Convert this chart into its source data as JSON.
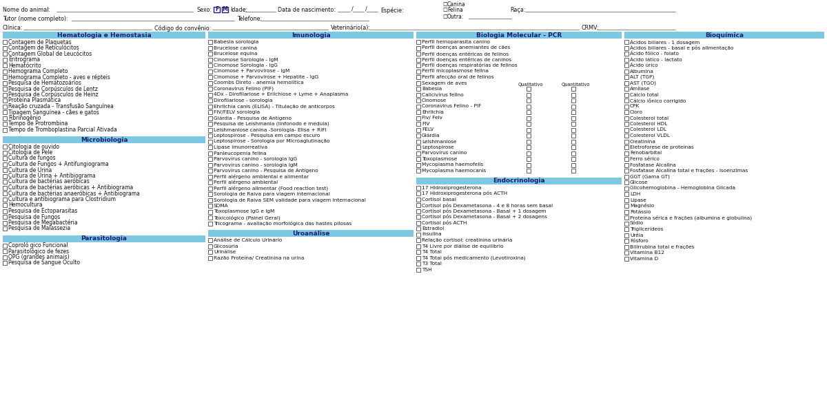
{
  "section_bg": "#7ec8e3",
  "header_text_color": "#1a1a6e",
  "body_text_color": "#111111",
  "checkbox_color": "#444444",
  "bg_color": "#ffffff",
  "col1_sections": [
    {
      "title": "Hematologia e Hemostasia",
      "items": [
        "Contagem de Plaquetas",
        "Contagem de Reticulócitos",
        "Contagem Global de Leucócitos",
        "Eritrograma",
        "Hematócrito",
        "Hemograma Completo",
        "Hemograma Completo - aves e répteis",
        "Pesquisa de Hematozoários",
        "Pesquisa de Corpúsculos de Lentz",
        "Pesquisa de Corpúsculos de Heinz",
        "Proteína Plasmática",
        "Reação cruzada - Transfusão Sanguínea",
        "Tipagem Sanguínea - cães e gatos",
        "Fibrinogênio",
        "Tempo de Protrombina",
        "Tempo de Tromboplastina Parcial Ativada"
      ]
    },
    {
      "title": "Microbiologia",
      "items": [
        "Citologia de ouvido",
        "Citologia de Pele",
        "Cultura de fungos",
        "Cultura de Fungos + Antifungiograma",
        "Cultura de Urina",
        "Cultura de Urina + Antibiograma",
        "Cultura de bactérias aeróbicas",
        "Cultura de bactérias aeróbicas + Antibiograma",
        "Cultura de bactérias anaeróbicas + Antibiograma",
        "Cultura e antibiograma para Clostridium",
        "Hemocultura",
        "Pesquisa de Ectoparasitas",
        "Pesquisa de Fungos",
        "Pesquisa de Megabactéria",
        "Pesquisa de Malassezia"
      ]
    },
    {
      "title": "Parasitologia",
      "items": [
        "Coproló gico Funcional",
        "Parasitológico de fezes",
        "OPG (grandes animais)",
        "Pesquisa de Sangue Oculto"
      ]
    }
  ],
  "col2_sections": [
    {
      "title": "Imunologia",
      "items": [
        "Babesia sorologia",
        "Brucelose canina",
        "Brucelose equina",
        "Cinomose Sorologia - IgM",
        "Cinomose Sorologia - IgG",
        "Cinomose + Parvovirose - IgM",
        "Cinomose + Parvovirose + Hepatite - IgG",
        "Coombs Direto - anemia hemolítica",
        "Coronavirus Felino (PIF)",
        "4Dx - Dirofilariose + Erlichiose + Lyme + Anaplasma",
        "Dirofilariose - sorologia",
        "Ehrlichia canis (ELISA) - Titulação de anticorpos",
        "FIV/FELV sorologia",
        "Giárdia - Pesquisa de Antígeno",
        "Pesquisa de Leishmania (linfonodo e medula)",
        "Leishmaniose canina -Sorologia- Elisa + RIFI",
        "Leptospirose - Pesquisa em campo escuro",
        "Leptospirose - Sorologia por Microaglutinação",
        "Lipase imunorreativa",
        "Panleucopenia felina",
        "Parvovírus canino - sorologia IgG",
        "Parvovírus canino - sorologia IgM",
        "Parvovírus canino - Pesquisa de Antígeno",
        "Perfil alérgeno ambiental e alimentar",
        "Perfil alérgeno ambiental",
        "Perfil alérgeno alimentar (Food reaction test)",
        "Sorologia de Raiva para viagem internacional",
        "Sorologia de Raiva SEM validade para viagem internacional",
        "SDMA",
        "Toxoplasmose IgG e IgM",
        "Toxicológico (Painel Geral)",
        "Tricograma - avaliação morfológica das hastes pilosas"
      ]
    },
    {
      "title": "Uroanálise",
      "items": [
        "Análise de Cálculo Urinário",
        "Glicosúria",
        "Urinálise",
        "Razão Proteína/ Creatinina na urina"
      ]
    }
  ],
  "col3_sections": [
    {
      "title": "Biologia Molecular - PCR",
      "items_simple": [
        "Perfil hemoparasita canino",
        "Perfil doenças anemiantes de cães",
        "Perfil doenças entéricas de felinos",
        "Perfil doenças entéricas de caninos",
        "Perfil doenças respiratórias de felinos",
        "Perfil micoplasmose felina",
        "Perfil afecção oral de felinos",
        "Sexagem de aves"
      ],
      "items_dual": [
        "Babesia",
        "Calicivírus felino",
        "Cinomose",
        "Coronavirus Felino - PIF",
        "Ehrlichia",
        "Fiv/ Felv",
        "FIV",
        "FELV",
        "Giárdia",
        "Leishmaniose",
        "Leptospirose",
        "Parvovírus canino",
        "Toxoplasmose",
        "Mycoplasma haemofelis",
        "Mycoplasma haemocanis"
      ]
    },
    {
      "title": "Endocrinologia",
      "items": [
        "17 Hidroxiprogesterona",
        "17 Hidroxiprogesterona pós ACTH",
        "Cortisol basal",
        "Cortisol pós Dexametasona - 4 e 8 horas sem basal",
        "Cortisol pós Dexametasona - Basal + 1 dosagem",
        "Cortisol pós Dexametasona - Basal + 2 dosagens",
        "Cortisol pós ACTH",
        "Estradiol",
        "Insulina",
        "Relação cortisol: creatinina urinária",
        "T4 Livre por diálise de equilíbrio",
        "T4 Total",
        "T4 Total pós medicamento (Levotiroxina)",
        "T3 Total",
        "TSH"
      ]
    }
  ],
  "col4_sections": [
    {
      "title": "Bioquímica",
      "items": [
        "Ácidos biliares - 1 dosagem",
        "Ácidos biliares - basal e pós alimentação",
        "Ácido fólico - folato",
        "Ácido lático - lactato",
        "Ácido úrico",
        "Albumina",
        "ALT (TGP)",
        "AST (TGO)",
        "Amilase",
        "Cálcio total",
        "Cálcio iônico corrigido",
        "CPK",
        "Cloro",
        "Colesterol total",
        "Colesterol HDL",
        "Colesterol LDL",
        "Colesterol VLDL",
        "Creatinina",
        "Eletroforese de proteínas",
        "Fenobarbital",
        "Ferro sérico",
        "Fosfatase Alcalina",
        "Fosfatase Alcalina total e frações - Isoenzimas",
        "GGT (Gama GT)",
        "Glicose",
        "Glicohemoglobina - Hemoglobina Glicada",
        "LDH",
        "Lipase",
        "Magnésio",
        "Potássio",
        "Proteína sérica e frações (albumina e globulina)",
        "Sódio",
        "Triglicerídeos",
        "Uréia",
        "Fósforo",
        "Bilirrubina total e frações",
        "Vitamina B12",
        "Vitamina D"
      ]
    }
  ]
}
